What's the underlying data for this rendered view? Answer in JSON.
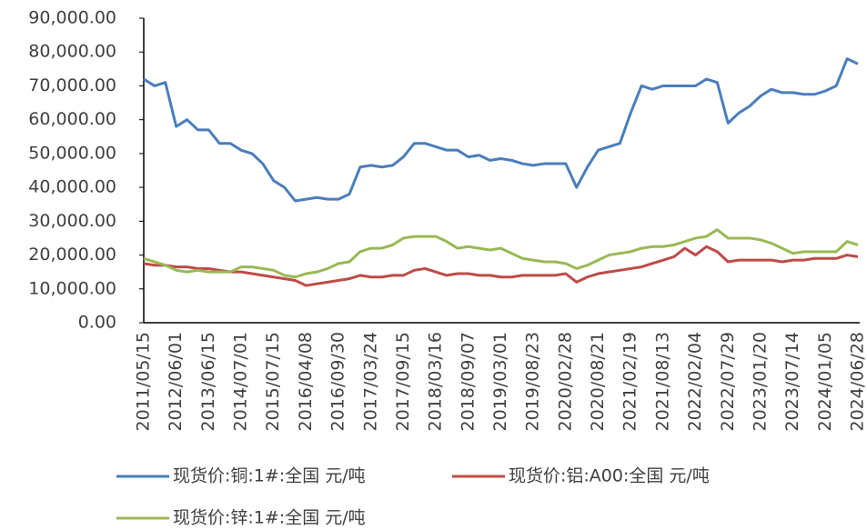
{
  "chart_data": {
    "type": "line",
    "categories": [
      "2011/05/15",
      null,
      null,
      "2012/06/01",
      null,
      null,
      "2013/06/15",
      null,
      null,
      "2014/07/01",
      null,
      null,
      "2015/07/15",
      null,
      null,
      "2016/04/08",
      null,
      null,
      "2016/09/30",
      null,
      null,
      "2017/03/24",
      null,
      null,
      "2017/09/15",
      null,
      null,
      "2018/03/16",
      null,
      null,
      "2018/09/07",
      null,
      null,
      "2019/03/01",
      null,
      null,
      "2019/08/23",
      null,
      null,
      "2020/02/28",
      null,
      null,
      "2020/08/21",
      null,
      null,
      "2021/02/19",
      null,
      null,
      "2021/08/13",
      null,
      null,
      "2022/02/04",
      null,
      null,
      "2022/07/29",
      null,
      null,
      "2023/01/20",
      null,
      null,
      "2023/07/14",
      null,
      null,
      "2024/01/05",
      null,
      null,
      "2024/06/28"
    ],
    "series": [
      {
        "name": "现货价:铜:1#:全国 元/吨",
        "color": "#4a7ebb",
        "values": [
          72000,
          70000,
          71000,
          58000,
          60000,
          57000,
          57000,
          53000,
          53000,
          51000,
          50000,
          47000,
          42000,
          40000,
          36000,
          36500,
          37000,
          36500,
          36500,
          38000,
          46000,
          46500,
          46000,
          46500,
          49000,
          53000,
          53000,
          52000,
          51000,
          51000,
          49000,
          49500,
          48000,
          48500,
          48000,
          47000,
          46500,
          47000,
          47000,
          47000,
          40000,
          46000,
          51000,
          52000,
          53000,
          62000,
          70000,
          69000,
          70000,
          70000,
          70000,
          70000,
          72000,
          71000,
          59000,
          62000,
          64000,
          67000,
          69000,
          68000,
          68000,
          67500,
          67500,
          68500,
          70000,
          78000,
          76500
        ]
      },
      {
        "name": "现货价:铝:A00:全国 元/吨",
        "color": "#be4b48",
        "values": [
          17500,
          17000,
          17000,
          16500,
          16500,
          16000,
          16000,
          15500,
          15000,
          15000,
          14500,
          14000,
          13500,
          13000,
          12500,
          11000,
          11500,
          12000,
          12500,
          13000,
          14000,
          13500,
          13500,
          14000,
          14000,
          15500,
          16000,
          15000,
          14000,
          14500,
          14500,
          14000,
          14000,
          13500,
          13500,
          14000,
          14000,
          14000,
          14000,
          14500,
          12000,
          13500,
          14500,
          15000,
          15500,
          16000,
          16500,
          17500,
          18500,
          19500,
          22000,
          20000,
          22500,
          21000,
          18000,
          18500,
          18500,
          18500,
          18500,
          18000,
          18500,
          18500,
          19000,
          19000,
          19000,
          20000,
          19500
        ]
      },
      {
        "name": "现货价:锌:1#:全国 元/吨",
        "color": "#98b954",
        "values": [
          19000,
          18000,
          17000,
          15500,
          15000,
          15500,
          15000,
          15000,
          15000,
          16500,
          16500,
          16000,
          15500,
          14000,
          13500,
          14500,
          15000,
          16000,
          17500,
          18000,
          21000,
          22000,
          22000,
          23000,
          25000,
          25500,
          25500,
          25500,
          24000,
          22000,
          22500,
          22000,
          21500,
          22000,
          20500,
          19000,
          18500,
          18000,
          18000,
          17500,
          16000,
          17000,
          18500,
          20000,
          20500,
          21000,
          22000,
          22500,
          22500,
          23000,
          24000,
          25000,
          25500,
          27500,
          25000,
          25000,
          25000,
          24500,
          23500,
          22000,
          20500,
          21000,
          21000,
          21000,
          21000,
          24000,
          23000
        ]
      }
    ],
    "ylim": [
      0,
      90000
    ],
    "yticks": [
      {
        "value": 0,
        "label": "0.00"
      },
      {
        "value": 10000,
        "label": "10,000.00"
      },
      {
        "value": 20000,
        "label": "20,000.00"
      },
      {
        "value": 30000,
        "label": "30,000.00"
      },
      {
        "value": 40000,
        "label": "40,000.00"
      },
      {
        "value": 50000,
        "label": "50,000.00"
      },
      {
        "value": 60000,
        "label": "60,000.00"
      },
      {
        "value": 70000,
        "label": "70,000.00"
      },
      {
        "value": 80000,
        "label": "80,000.00"
      },
      {
        "value": 90000,
        "label": "90,000.00"
      }
    ],
    "grid": false
  }
}
